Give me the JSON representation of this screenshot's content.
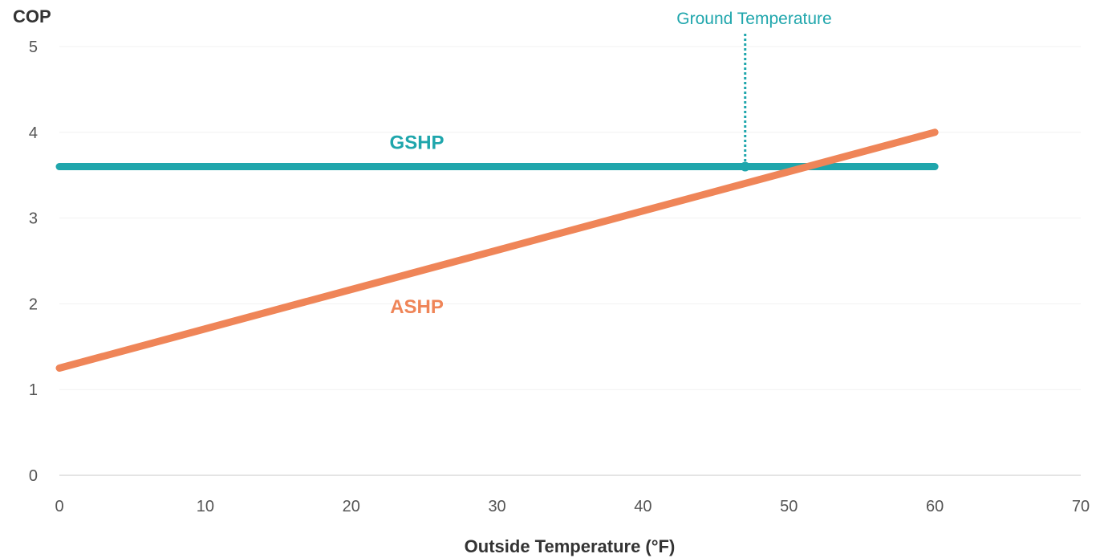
{
  "chart_data": {
    "type": "line",
    "ylabel": "COP",
    "xlabel": "Outside Temperature (°F)",
    "xlim": [
      0,
      70
    ],
    "ylim": [
      0,
      5
    ],
    "x_ticks": [
      "0",
      "10",
      "20",
      "30",
      "40",
      "50",
      "60",
      "70"
    ],
    "y_ticks": [
      "0",
      "1",
      "2",
      "3",
      "4",
      "5"
    ],
    "grid": "horizontal",
    "series": [
      {
        "name": "GSHP",
        "color": "#1fa6ac",
        "x": [
          0,
          60
        ],
        "y": [
          3.6,
          3.6
        ]
      },
      {
        "name": "ASHP",
        "color": "#ef8558",
        "x": [
          0,
          60
        ],
        "y": [
          1.25,
          4.0
        ]
      }
    ],
    "annotation": {
      "text": "Ground Temperature",
      "x": 47,
      "y": 3.6,
      "color": "#1fa6ac"
    }
  }
}
